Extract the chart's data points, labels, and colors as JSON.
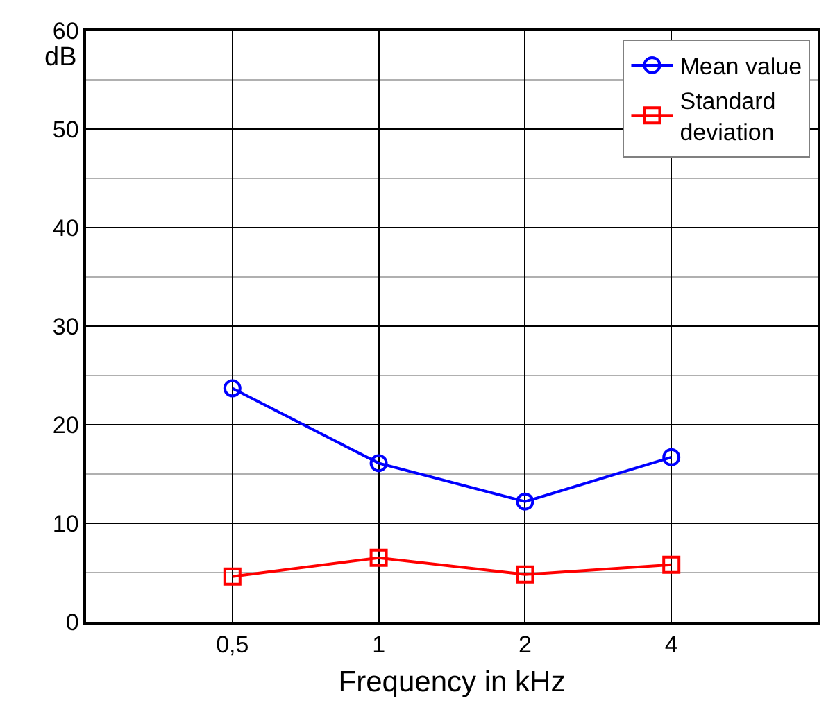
{
  "chart_data": {
    "type": "line",
    "xlabel": "Frequency in kHz",
    "ylabel": "dB",
    "categories": [
      "0,5",
      "1",
      "2",
      "4"
    ],
    "series": [
      {
        "name": "Mean value",
        "color": "#0000ff",
        "marker": "circle",
        "values": [
          23.7,
          16.1,
          12.2,
          16.7
        ]
      },
      {
        "name": "Standard deviation",
        "color": "#ff0000",
        "marker": "square",
        "values": [
          4.6,
          6.5,
          4.8,
          5.8
        ]
      }
    ],
    "ylim": [
      0,
      60
    ],
    "yticks": [
      0,
      10,
      20,
      30,
      40,
      50,
      60
    ],
    "grid": true,
    "legend": "top right",
    "line_style": "solid"
  }
}
